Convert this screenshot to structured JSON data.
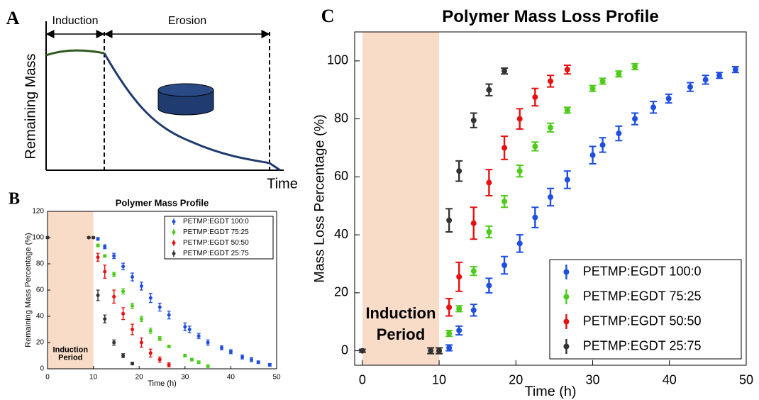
{
  "chart_data": [
    {
      "type": "schematic",
      "panel": "A",
      "phases": [
        "Induction",
        "Erosion"
      ],
      "ylabel": "Remaining Mass",
      "xlabel": "Time"
    },
    {
      "type": "scatter",
      "panel": "B",
      "title": "Polymer Mass Profile",
      "xlabel": "Time (h)",
      "ylabel": "Remaining Mass Percentage (%)",
      "annotation": [
        "Induction",
        "Period"
      ],
      "shaded_region": [
        0,
        10
      ],
      "xlim": [
        0,
        50
      ],
      "ylim": [
        0,
        120
      ],
      "xticks": [
        0,
        10,
        20,
        30,
        40,
        50
      ],
      "yticks": [
        0,
        20,
        40,
        60,
        80,
        100,
        120
      ],
      "legend": "upper right",
      "series": [
        {
          "name": "PETMP:EGDT 100:0",
          "color": "#1f4fe0",
          "x": [
            0,
            9,
            10,
            11,
            12.5,
            14.5,
            16.5,
            18.5,
            20.5,
            22.5,
            24.5,
            26.5,
            30,
            31,
            33,
            35,
            38,
            40,
            42.5,
            44.5,
            46,
            48.5
          ],
          "values": [
            100,
            100,
            100,
            99,
            93,
            86,
            78,
            70,
            63,
            54,
            47,
            41,
            32,
            30,
            25,
            20,
            16,
            13,
            9,
            7,
            5,
            3
          ],
          "errors": [
            0.5,
            0.5,
            0.5,
            1,
            1.5,
            2,
            2.5,
            3,
            3,
            3.5,
            3,
            3,
            3,
            2.5,
            2,
            2,
            1.5,
            1.5,
            1.5,
            1.5,
            1,
            1
          ]
        },
        {
          "name": "PETMP:EGDT 75:25",
          "color": "#4dcc1a",
          "x": [
            0,
            9,
            10,
            11,
            12.5,
            14.5,
            16.5,
            18.5,
            20.5,
            22.5,
            24.5,
            26.5,
            30,
            31.5,
            33,
            35
          ],
          "values": [
            100,
            100,
            100,
            94,
            86,
            72,
            59,
            48,
            38,
            29,
            23,
            17,
            10,
            7,
            5,
            2
          ],
          "errors": [
            0.5,
            0.5,
            0.5,
            1,
            1,
            1.5,
            2,
            2,
            2,
            2,
            1.5,
            1,
            1,
            1,
            1,
            1
          ]
        },
        {
          "name": "PETMP:EGDT 50:50",
          "color": "#e81010",
          "x": [
            0,
            9,
            10,
            11,
            12.5,
            14.5,
            16.5,
            18.5,
            20.5,
            22.5,
            24.5,
            26.5
          ],
          "values": [
            100,
            100,
            100,
            85,
            74,
            55,
            42,
            30,
            20,
            12,
            7,
            3
          ],
          "errors": [
            0.5,
            0.5,
            0.5,
            3,
            5,
            5,
            4.5,
            4,
            3.5,
            3,
            2,
            1.5
          ]
        },
        {
          "name": "PETMP:EGDT 25:75",
          "color": "#333333",
          "x": [
            0,
            9,
            10,
            11,
            12.5,
            14.5,
            16.5,
            18.5
          ],
          "values": [
            100,
            100,
            100,
            56,
            38,
            20,
            10,
            4
          ],
          "errors": [
            0.5,
            0.5,
            0.5,
            4,
            3,
            2,
            1.5,
            1
          ]
        }
      ]
    },
    {
      "type": "scatter",
      "panel": "C",
      "title": "Polymer Mass Loss Profile",
      "xlabel": "Time (h)",
      "ylabel": "Mass Loss Percentage (%)",
      "annotation": [
        "Induction",
        "Period"
      ],
      "shaded_region": [
        0,
        10
      ],
      "xlim": [
        -1,
        50
      ],
      "ylim": [
        -5,
        110
      ],
      "xticks": [
        0,
        10,
        20,
        30,
        40,
        50
      ],
      "yticks": [
        0,
        20,
        40,
        60,
        80,
        100
      ],
      "legend": "lower right",
      "series": [
        {
          "name": "PETMP:EGDT 100:0",
          "color": "#1f4fe0",
          "x": [
            11.3,
            12.6,
            14.5,
            16.5,
            18.5,
            20.5,
            22.5,
            24.5,
            26.7,
            30,
            31.3,
            33.4,
            35.5,
            37.9,
            39.9,
            42.7,
            44.7,
            46.5,
            48.6
          ],
          "values": [
            1,
            7,
            14,
            22.5,
            29.5,
            37,
            46,
            53,
            59,
            67.5,
            71,
            75,
            80,
            84,
            87,
            91,
            93.5,
            95,
            97
          ],
          "errors": [
            1,
            1.5,
            2,
            2.5,
            3,
            3,
            3.5,
            3,
            3,
            3,
            2.5,
            2.5,
            2,
            2,
            1.5,
            1.5,
            1.5,
            1,
            1
          ]
        },
        {
          "name": "PETMP:EGDT 75:25",
          "color": "#4dcc1a",
          "x": [
            11.3,
            12.6,
            14.5,
            16.5,
            18.5,
            20.5,
            22.5,
            24.5,
            26.7,
            30,
            31.3,
            33.4,
            35.5
          ],
          "values": [
            6,
            14.5,
            27.5,
            41,
            51.5,
            62,
            70.5,
            77,
            83,
            90.5,
            93,
            95.5,
            98
          ],
          "errors": [
            1,
            1,
            1.5,
            2,
            2,
            2,
            1.5,
            1.5,
            1,
            1,
            1,
            1,
            1
          ]
        },
        {
          "name": "PETMP:EGDT 50:50",
          "color": "#e81010",
          "x": [
            10,
            11.3,
            12.6,
            14.5,
            16.5,
            18.5,
            20.5,
            22.5,
            24.5,
            26.7
          ],
          "values": [
            0,
            15,
            25.5,
            44,
            58,
            70,
            80,
            87.5,
            93,
            97
          ],
          "errors": [
            1,
            3,
            5,
            5.5,
            4.5,
            4,
            3.5,
            3,
            2,
            1.5
          ]
        },
        {
          "name": "PETMP:EGDT 25:75",
          "color": "#333333",
          "x": [
            0,
            8.9,
            10,
            11.3,
            12.6,
            14.5,
            16.5,
            18.5
          ],
          "values": [
            0,
            0,
            0,
            45,
            62,
            79.5,
            90,
            96.5
          ],
          "errors": [
            0.5,
            1,
            1,
            4,
            3.5,
            2.5,
            2,
            1
          ]
        }
      ]
    }
  ]
}
